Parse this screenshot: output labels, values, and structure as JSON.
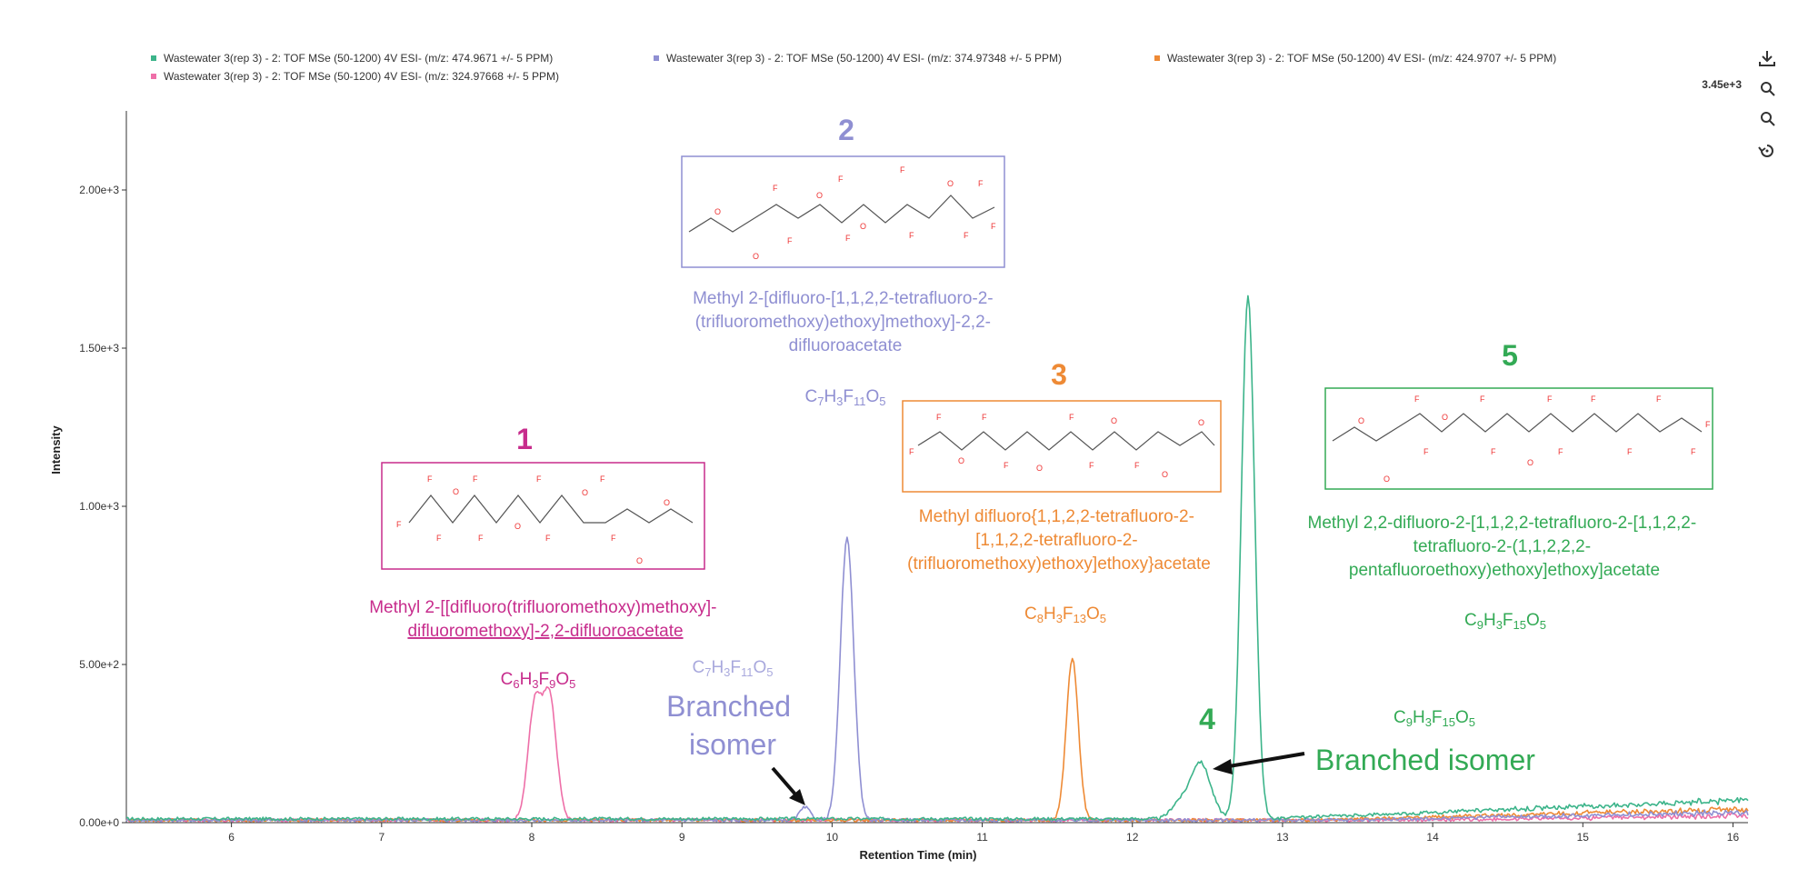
{
  "toolbar": {
    "top_value": "3.45e+3",
    "icons": [
      "download-icon",
      "zoom-in-icon",
      "zoom-out-icon",
      "reset-view-icon"
    ]
  },
  "chart_data": {
    "type": "line",
    "xlabel": "Retention Time (min)",
    "ylabel": "Intensity",
    "xlim": [
      5.3,
      16.1
    ],
    "ylim": [
      0,
      2250
    ],
    "x_ticks": [
      6,
      7,
      8,
      9,
      10,
      11,
      12,
      13,
      14,
      15,
      16
    ],
    "y_ticks": [
      {
        "value": 0,
        "label": "0.00e+0"
      },
      {
        "value": 500,
        "label": "5.00e+2"
      },
      {
        "value": 1000,
        "label": "1.00e+3"
      },
      {
        "value": 1500,
        "label": "1.50e+3"
      },
      {
        "value": 2000,
        "label": "2.00e+3"
      }
    ],
    "legend_position": "top",
    "series": [
      {
        "name": "Wastewater 3(rep 3) - 2: TOF MSe (50-1200) 4V ESI- (m/z: 474.9671 +/- 5 PPM)",
        "color": "#3cb48a",
        "peaks": [
          [
            12.45,
            180,
            0.07
          ],
          [
            12.77,
            1650,
            0.045
          ],
          [
            12.3,
            40,
            0.05
          ]
        ],
        "baseline": 12,
        "rise_after": 12.9,
        "rise_to": 60
      },
      {
        "name": "Wastewater 3(rep 3) - 2: TOF MSe (50-1200) 4V ESI- (m/z: 374.97348 +/- 5 PPM)",
        "color": "#8f8fd2",
        "peaks": [
          [
            9.82,
            40,
            0.035
          ],
          [
            10.1,
            890,
            0.045
          ]
        ],
        "baseline": 8,
        "rise_after": 13.5,
        "rise_to": 25
      },
      {
        "name": "Wastewater 3(rep 3) - 2: TOF MSe (50-1200) 4V ESI- (m/z: 424.9707 +/- 5 PPM)",
        "color": "#ee8a35",
        "peaks": [
          [
            11.6,
            510,
            0.04
          ]
        ],
        "baseline": 8,
        "rise_after": 13.2,
        "rise_to": 35
      },
      {
        "name": "Wastewater 3(rep 3) - 2: TOF MSe (50-1200) 4V ESI- (m/z: 324.97668 +/- 5 PPM)",
        "color": "#ee6fa8",
        "peaks": [
          [
            8.02,
            360,
            0.045
          ],
          [
            8.12,
            380,
            0.045
          ]
        ],
        "baseline": 8,
        "rise_after": 14.0,
        "rise_to": 15
      }
    ],
    "annotations": [
      {
        "id": "1",
        "color": "#c72c8c",
        "name_lines": [
          "Methyl 2-[[difluoro(trifluoromethoxy)methoxy]-",
          "difluoromethoxy]-2,2-difluoroacetate"
        ],
        "formula": [
          [
            "C",
            ""
          ],
          [
            "6",
            "sub"
          ],
          [
            "H",
            ""
          ],
          [
            "3",
            "sub"
          ],
          [
            "F",
            ""
          ],
          [
            "9",
            "sub"
          ],
          [
            "O",
            ""
          ],
          [
            "5",
            "sub"
          ]
        ]
      },
      {
        "id": "2",
        "color": "#8f8fd2",
        "name_lines": [
          "Methyl 2-[difluoro-[1,1,2,2-tetrafluoro-2-",
          "(trifluoromethoxy)ethoxy]methoxy]-2,2-",
          "difluoroacetate"
        ],
        "formula": [
          [
            "C",
            ""
          ],
          [
            "7",
            "sub"
          ],
          [
            "H",
            ""
          ],
          [
            "3",
            "sub"
          ],
          [
            "F",
            ""
          ],
          [
            "11",
            "sub"
          ],
          [
            "O",
            ""
          ],
          [
            "5",
            "sub"
          ]
        ]
      },
      {
        "id": "3",
        "color": "#ee8a35",
        "name_lines": [
          "Methyl difluoro{1,1,2,2-tetrafluoro-2-",
          "[1,1,2,2-tetrafluoro-2-",
          "(trifluoromethoxy)ethoxy]ethoxy}acetate"
        ],
        "formula": [
          [
            "C",
            ""
          ],
          [
            "8",
            "sub"
          ],
          [
            "H",
            ""
          ],
          [
            "3",
            "sub"
          ],
          [
            "F",
            ""
          ],
          [
            "13",
            "sub"
          ],
          [
            "O",
            ""
          ],
          [
            "5",
            "sub"
          ]
        ]
      },
      {
        "id": "5",
        "color": "#33aa55",
        "name_lines": [
          "Methyl 2,2-difluoro-2-[1,1,2,2-tetrafluoro-2-[1,1,2,2-",
          "tetrafluoro-2-(1,1,2,2,2-",
          "pentafluoroethoxy)ethoxy]ethoxy]acetate"
        ],
        "formula": [
          [
            "C",
            ""
          ],
          [
            "9",
            "sub"
          ],
          [
            "H",
            ""
          ],
          [
            "3",
            "sub"
          ],
          [
            "F",
            ""
          ],
          [
            "15",
            "sub"
          ],
          [
            "O",
            ""
          ],
          [
            "5",
            "sub"
          ]
        ]
      }
    ],
    "branched": [
      {
        "label_lines": [
          "Branched",
          "isomer"
        ],
        "color": "#8f8fd2",
        "formula": [
          [
            "C",
            ""
          ],
          [
            "7",
            "sub"
          ],
          [
            "H",
            ""
          ],
          [
            "3",
            "sub"
          ],
          [
            "F",
            ""
          ],
          [
            "11",
            "sub"
          ],
          [
            "O",
            ""
          ],
          [
            "5",
            "sub"
          ]
        ]
      },
      {
        "id": "4",
        "label_lines": [
          "Branched isomer"
        ],
        "color": "#33aa55",
        "formula": [
          [
            "C",
            ""
          ],
          [
            "9",
            "sub"
          ],
          [
            "H",
            ""
          ],
          [
            "3",
            "sub"
          ],
          [
            "F",
            ""
          ],
          [
            "15",
            "sub"
          ],
          [
            "O",
            ""
          ],
          [
            "5",
            "sub"
          ]
        ]
      }
    ],
    "atom_labels": {
      "F": "F",
      "O": "O"
    }
  }
}
